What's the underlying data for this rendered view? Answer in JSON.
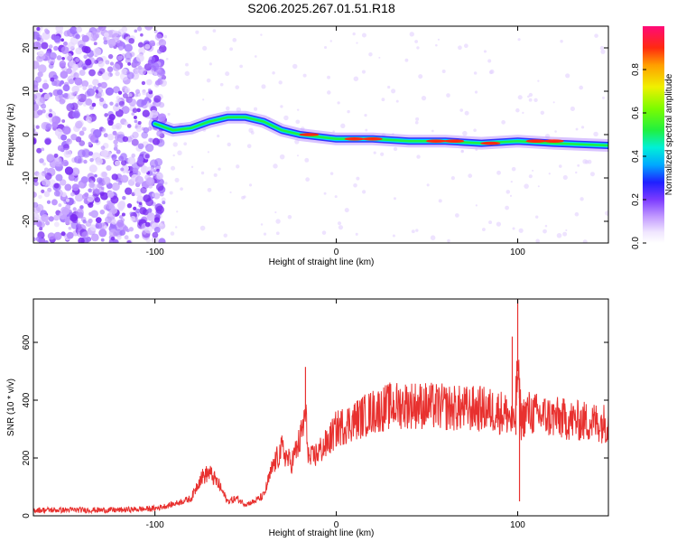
{
  "title": "S206.2025.267.01.51.R18",
  "chart_data": [
    {
      "type": "heatmap",
      "xlabel": "Height of straight line (km)",
      "ylabel": "Frequency (Hz)",
      "xlim": [
        -167,
        150
      ],
      "ylim": [
        -25,
        25
      ],
      "x_ticks": [
        -100,
        0,
        100
      ],
      "y_ticks": [
        -20,
        -10,
        0,
        10,
        20
      ],
      "colorbar": {
        "label": "Normalized spectral amplitude",
        "range": [
          0,
          1
        ],
        "ticks": [
          0.0,
          0.2,
          0.4,
          0.6,
          0.8
        ],
        "tick_labels": [
          "0.0",
          "0.2",
          "0.4",
          "0.6",
          "0.8"
        ]
      },
      "ridge": [
        {
          "x": -100,
          "y": 2.5
        },
        {
          "x": -90,
          "y": 1
        },
        {
          "x": -80,
          "y": 1.5
        },
        {
          "x": -70,
          "y": 3
        },
        {
          "x": -60,
          "y": 4
        },
        {
          "x": -50,
          "y": 4
        },
        {
          "x": -40,
          "y": 3
        },
        {
          "x": -30,
          "y": 1
        },
        {
          "x": -20,
          "y": 0
        },
        {
          "x": 0,
          "y": -1
        },
        {
          "x": 20,
          "y": -1
        },
        {
          "x": 40,
          "y": -1.5
        },
        {
          "x": 60,
          "y": -1.5
        },
        {
          "x": 80,
          "y": -2
        },
        {
          "x": 100,
          "y": -1.5
        },
        {
          "x": 120,
          "y": -2
        },
        {
          "x": 150,
          "y": -2.5
        }
      ]
    },
    {
      "type": "line",
      "xlabel": "Height of straight line (km)",
      "ylabel": "SNR (10 * v/v)",
      "xlim": [
        -167,
        150
      ],
      "ylim": [
        0,
        750
      ],
      "x_ticks": [
        -100,
        0,
        100
      ],
      "y_ticks": [
        0,
        200,
        400,
        600
      ],
      "color": "#e8312f",
      "series": [
        {
          "name": "SNR",
          "x": [
            -167,
            -140,
            -120,
            -100,
            -90,
            -80,
            -75,
            -70,
            -65,
            -60,
            -55,
            -50,
            -45,
            -40,
            -35,
            -30,
            -25,
            -20,
            -17,
            -15,
            -10,
            -5,
            0,
            10,
            20,
            30,
            40,
            50,
            60,
            70,
            80,
            90,
            95,
            98,
            100,
            102,
            105,
            110,
            120,
            130,
            140,
            150
          ],
          "y": [
            20,
            20,
            20,
            25,
            40,
            60,
            130,
            150,
            110,
            50,
            60,
            40,
            50,
            70,
            170,
            230,
            180,
            260,
            350,
            190,
            220,
            250,
            300,
            330,
            360,
            380,
            385,
            380,
            375,
            370,
            370,
            360,
            350,
            300,
            500,
            330,
            360,
            350,
            340,
            330,
            325,
            320
          ]
        },
        {
          "name": "spikes",
          "x": [
            -17,
            97,
            99,
            100,
            101
          ],
          "y": [
            515,
            620,
            280,
            760,
            50
          ]
        }
      ]
    }
  ]
}
